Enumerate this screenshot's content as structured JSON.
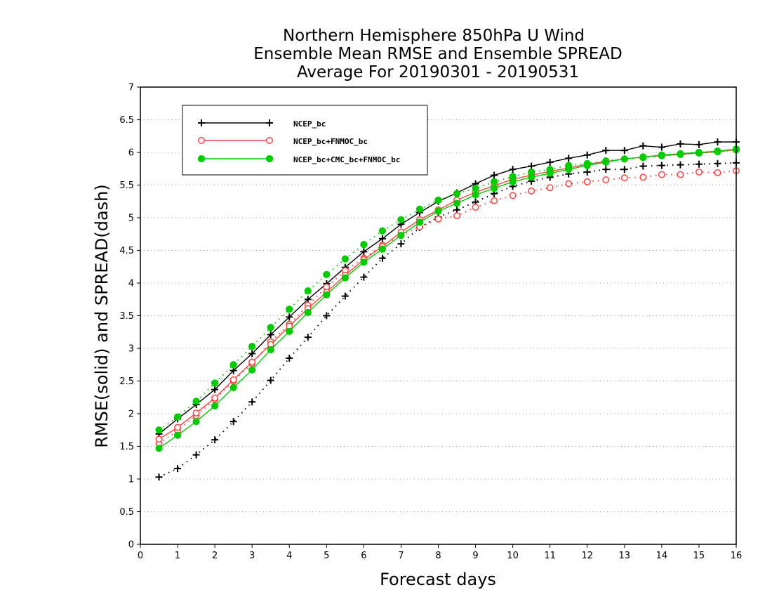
{
  "chart_data": {
    "type": "line",
    "title_lines": [
      "Northern Hemisphere 850hPa U Wind",
      "Ensemble Mean RMSE and Ensemble SPREAD",
      "Average For 20190301 - 20190531"
    ],
    "xlabel": "Forecast days",
    "ylabel": "RMSE(solid) and SPREAD(dash)",
    "xlim": [
      0,
      16
    ],
    "ylim": [
      0,
      7
    ],
    "x_ticks": [
      "0",
      "1",
      "2",
      "3",
      "4",
      "5",
      "6",
      "7",
      "8",
      "9",
      "10",
      "11",
      "12",
      "13",
      "14",
      "15",
      "16"
    ],
    "y_ticks": [
      "0",
      "0.5",
      "1",
      "1.5",
      "2",
      "2.5",
      "3",
      "3.5",
      "4",
      "4.5",
      "5",
      "5.5",
      "6",
      "6.5",
      "7"
    ],
    "grid": "horizontal dotted",
    "legend_position": "top-left",
    "x": [
      0.5,
      1,
      1.5,
      2,
      2.5,
      3,
      3.5,
      4,
      4.5,
      5,
      5.5,
      6,
      6.5,
      7,
      7.5,
      8,
      8.5,
      9,
      9.5,
      10,
      10.5,
      11,
      11.5,
      12,
      12.5,
      13,
      13.5,
      14,
      14.5,
      15,
      15.5,
      16
    ],
    "series": [
      {
        "name": "NCEP_bc",
        "color": "#000000",
        "marker": "plus",
        "rmse": [
          1.69,
          1.92,
          2.14,
          2.37,
          2.66,
          2.92,
          3.21,
          3.48,
          3.75,
          3.99,
          4.24,
          4.48,
          4.68,
          4.9,
          5.08,
          5.25,
          5.38,
          5.52,
          5.65,
          5.74,
          5.79,
          5.85,
          5.91,
          5.96,
          6.03,
          6.03,
          6.1,
          6.08,
          6.13,
          6.12,
          6.16,
          6.16
        ],
        "spread": [
          1.03,
          1.16,
          1.37,
          1.6,
          1.88,
          2.18,
          2.51,
          2.85,
          3.17,
          3.5,
          3.8,
          4.09,
          4.38,
          4.6,
          4.85,
          5.01,
          5.12,
          5.24,
          5.37,
          5.48,
          5.56,
          5.62,
          5.67,
          5.7,
          5.74,
          5.74,
          5.79,
          5.8,
          5.81,
          5.82,
          5.83,
          5.84
        ]
      },
      {
        "name": "NCEP_bc+FNMOC_bc",
        "color": "#ff4040",
        "marker": "open-circle",
        "rmse": [
          1.61,
          1.79,
          2.01,
          2.24,
          2.52,
          2.79,
          3.06,
          3.34,
          3.61,
          3.86,
          4.12,
          4.36,
          4.56,
          4.78,
          4.97,
          5.12,
          5.27,
          5.39,
          5.49,
          5.59,
          5.65,
          5.71,
          5.76,
          5.82,
          5.86,
          5.9,
          5.93,
          5.95,
          5.97,
          5.99,
          6.01,
          6.04
        ],
        "spread": [
          1.54,
          1.74,
          1.97,
          2.22,
          2.5,
          2.77,
          3.1,
          3.37,
          3.66,
          3.94,
          4.19,
          4.38,
          4.58,
          4.73,
          4.86,
          4.98,
          5.03,
          5.16,
          5.26,
          5.34,
          5.41,
          5.46,
          5.52,
          5.55,
          5.58,
          5.61,
          5.62,
          5.66,
          5.66,
          5.7,
          5.69,
          5.72
        ]
      },
      {
        "name": "NCEP_bc+CMC_bc+FNMOC_bc",
        "color": "#00cc00",
        "marker": "filled-circle",
        "rmse": [
          1.47,
          1.67,
          1.88,
          2.12,
          2.4,
          2.67,
          2.98,
          3.26,
          3.55,
          3.82,
          4.08,
          4.32,
          4.52,
          4.73,
          4.93,
          5.1,
          5.22,
          5.35,
          5.45,
          5.55,
          5.62,
          5.68,
          5.74,
          5.8,
          5.85,
          5.9,
          5.93,
          5.96,
          5.98,
          6,
          6.02,
          6.05
        ],
        "spread": [
          1.75,
          1.95,
          2.19,
          2.47,
          2.75,
          3.03,
          3.32,
          3.6,
          3.88,
          4.13,
          4.37,
          4.59,
          4.8,
          4.97,
          5.13,
          5.27,
          5.37,
          5.45,
          5.55,
          5.63,
          5.7,
          5.74,
          5.8,
          5.83,
          5.87,
          5.9,
          5.92,
          5.95,
          5.97,
          5.99,
          6.01,
          6.04
        ]
      }
    ]
  }
}
